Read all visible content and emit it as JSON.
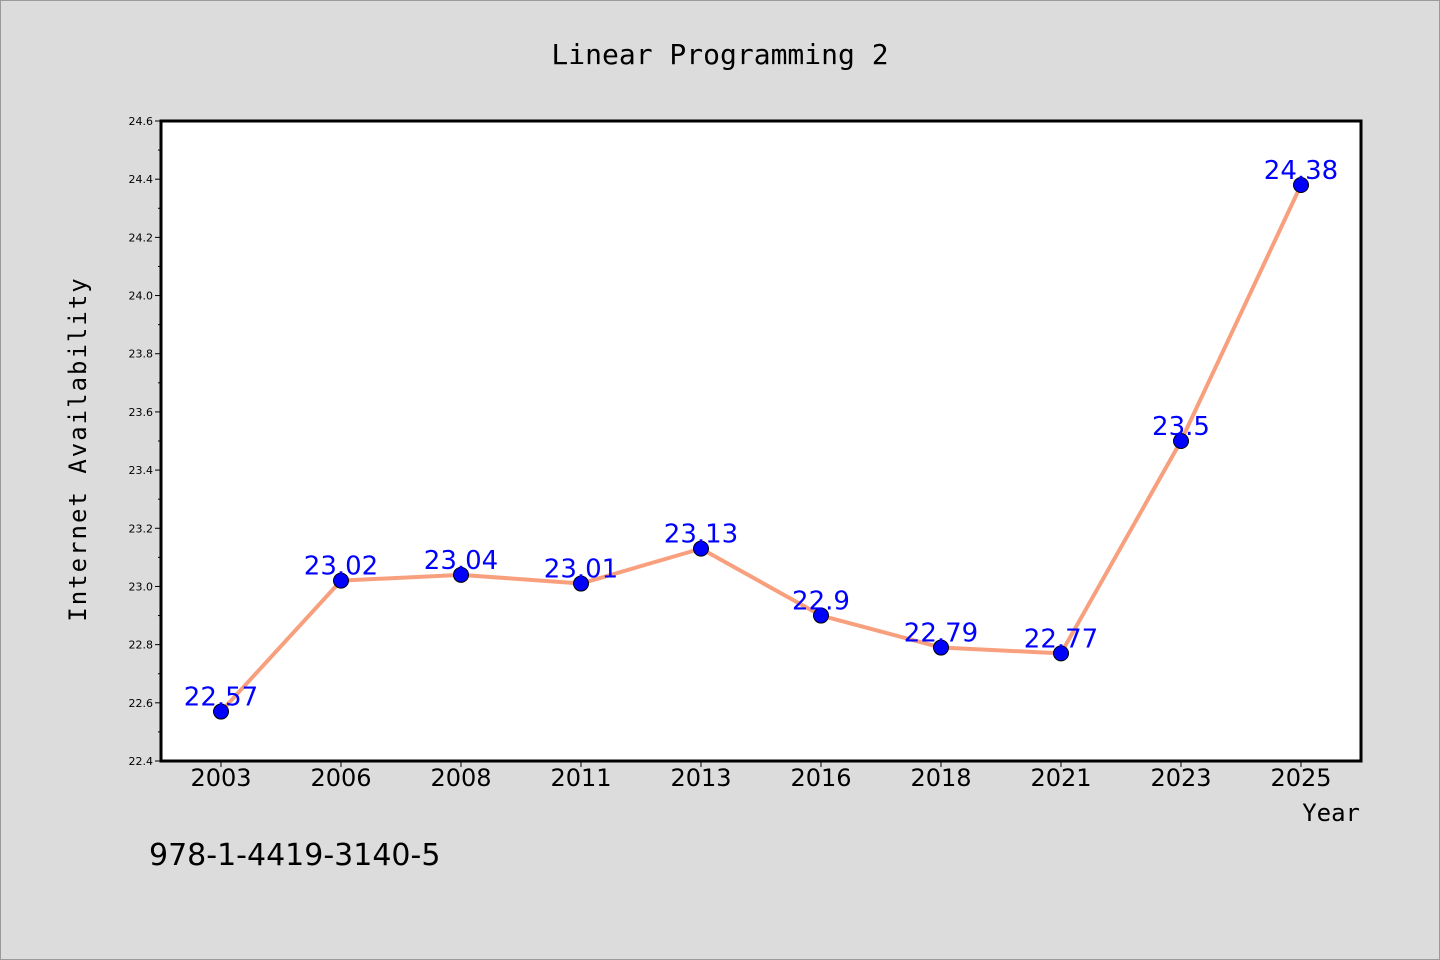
{
  "chart_data": {
    "type": "line",
    "title": "Linear Programming 2",
    "xlabel": "Year",
    "ylabel": "Internet Availability",
    "categories": [
      "2003",
      "2006",
      "2008",
      "2011",
      "2013",
      "2016",
      "2018",
      "2021",
      "2023",
      "2025"
    ],
    "series": [
      {
        "values": [
          22.57,
          23.02,
          23.04,
          23.01,
          23.13,
          22.9,
          22.79,
          22.77,
          23.5,
          24.38
        ],
        "line_color": "#f8a07e",
        "marker_color": "#0000ff"
      }
    ],
    "data_labels": [
      "22.57",
      "23.02",
      "23.04",
      "23.01",
      "23.13",
      "22.9",
      "22.79",
      "22.77",
      "23.5",
      "24.38"
    ],
    "ylim": [
      22.4,
      24.6
    ],
    "yticks": [
      "22.4",
      "22.6",
      "22.8",
      "23.0",
      "23.2",
      "23.4",
      "23.6",
      "23.8",
      "24.0",
      "24.2",
      "24.4",
      "24.6"
    ],
    "grid": false,
    "legend": "none"
  },
  "annotation": "978-1-4419-3140-5"
}
